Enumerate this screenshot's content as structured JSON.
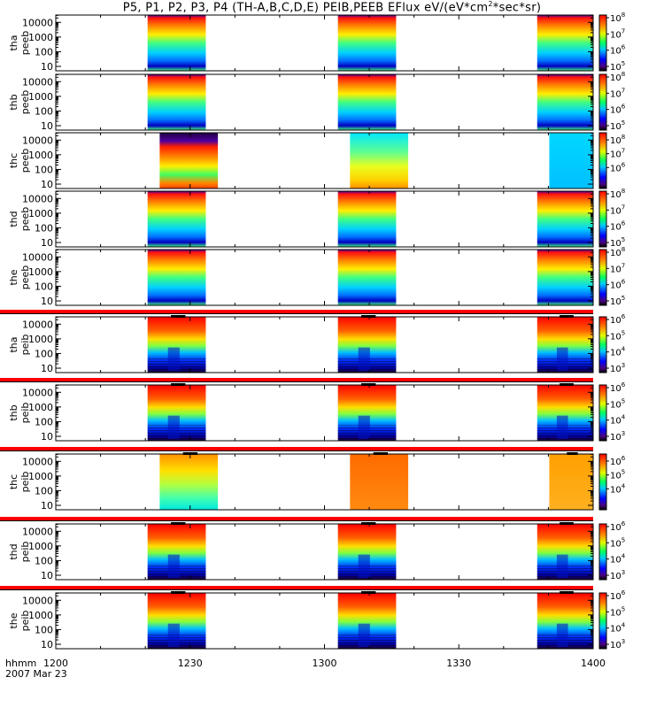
{
  "chart_data": {
    "type": "heatmap",
    "title_main": "P5, P1, P2, P3, P4 (TH-A,B,C,D,E) PEIB,PEEB EFlux eV/(eV*cm",
    "title_sup": "2",
    "title_end": "*sec*sr)",
    "x_label": "hhmm",
    "date_label": "2007 Mar 23",
    "x_ticks": [
      "1200",
      "1230",
      "1300",
      "1330",
      "1400"
    ],
    "xlim_minutes": [
      0,
      120
    ],
    "burst_intervals_minutes": [
      [
        20.5,
        33.5
      ],
      [
        63,
        76
      ],
      [
        107.5,
        120
      ]
    ],
    "y_ticks": [
      "10000",
      "1000",
      "100",
      "10"
    ],
    "y_tick_exponents": [
      4,
      3,
      2,
      1
    ],
    "panels": [
      {
        "probe": "tha",
        "species": "peeb",
        "colorbar_ticks": [
          "10",
          "10",
          "10",
          "10"
        ],
        "colorbar_exp": [
          "8",
          "7",
          "6",
          "5"
        ],
        "colorbar_range": [
          100000.0,
          100000000.0
        ]
      },
      {
        "probe": "thb",
        "species": "peeb",
        "colorbar_ticks": [
          "10",
          "10",
          "10",
          "10"
        ],
        "colorbar_exp": [
          "8",
          "7",
          "6",
          "5"
        ],
        "colorbar_range": [
          100000.0,
          100000000.0
        ]
      },
      {
        "probe": "thc",
        "species": "peeb",
        "colorbar_ticks": [
          "10",
          "10",
          "10"
        ],
        "colorbar_exp": [
          "8",
          "7",
          "6"
        ],
        "colorbar_range": [
          100000.0,
          100000000.0
        ]
      },
      {
        "probe": "thd",
        "species": "peeb",
        "colorbar_ticks": [
          "10",
          "10",
          "10",
          "10"
        ],
        "colorbar_exp": [
          "8",
          "7",
          "6",
          "5"
        ],
        "colorbar_range": [
          100000.0,
          100000000.0
        ]
      },
      {
        "probe": "the",
        "species": "peeb",
        "colorbar_ticks": [
          "10",
          "10",
          "10",
          "10"
        ],
        "colorbar_exp": [
          "8",
          "7",
          "6",
          "5"
        ],
        "colorbar_range": [
          100000.0,
          100000000.0
        ]
      },
      {
        "probe": "tha",
        "species": "peib",
        "colorbar_ticks": [
          "10",
          "10",
          "10",
          "10"
        ],
        "colorbar_exp": [
          "6",
          "5",
          "4",
          "3"
        ],
        "colorbar_range": [
          1000.0,
          1000000.0
        ]
      },
      {
        "probe": "thb",
        "species": "peib",
        "colorbar_ticks": [
          "10",
          "10",
          "10",
          "10"
        ],
        "colorbar_exp": [
          "6",
          "5",
          "4",
          "3"
        ],
        "colorbar_range": [
          1000.0,
          1000000.0
        ]
      },
      {
        "probe": "thc",
        "species": "peib",
        "colorbar_ticks": [
          "10",
          "10",
          "10"
        ],
        "colorbar_exp": [
          "6",
          "5",
          "4"
        ],
        "colorbar_range": [
          1000.0,
          1000000.0
        ]
      },
      {
        "probe": "thd",
        "species": "peib",
        "colorbar_ticks": [
          "10",
          "10",
          "10",
          "10"
        ],
        "colorbar_exp": [
          "6",
          "5",
          "4",
          "3"
        ],
        "colorbar_range": [
          1000.0,
          1000000.0
        ]
      },
      {
        "probe": "the",
        "species": "peib",
        "colorbar_ticks": [
          "10",
          "10",
          "10",
          "10"
        ],
        "colorbar_exp": [
          "6",
          "5",
          "4",
          "3"
        ],
        "colorbar_range": [
          1000.0,
          1000000.0
        ]
      }
    ]
  }
}
